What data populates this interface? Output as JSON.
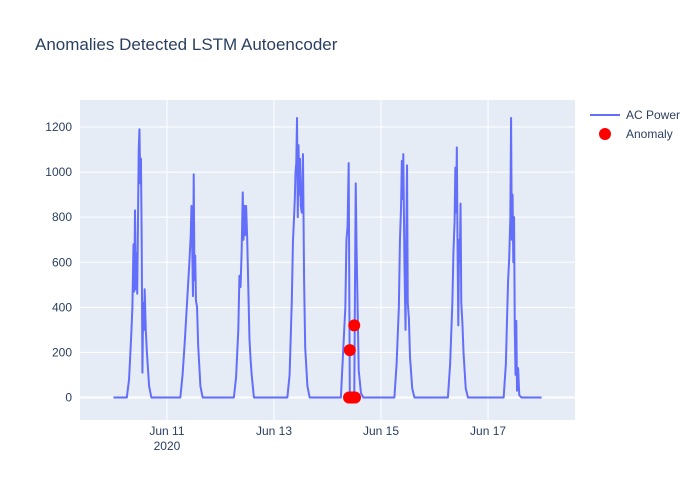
{
  "chart_data": {
    "type": "line",
    "title": "Anomalies Detected LSTM Autoencoder",
    "xlabel": "",
    "ylabel": "",
    "x_axis_type": "date",
    "xlim": [
      "2020-06-09T09:00",
      "2020-06-18T15:00"
    ],
    "ylim": [
      -100,
      1320
    ],
    "x_ticks": [
      {
        "value": "2020-06-11T00:00",
        "label": "Jun 11",
        "sublabel": "2020"
      },
      {
        "value": "2020-06-13T00:00",
        "label": "Jun 13",
        "sublabel": ""
      },
      {
        "value": "2020-06-15T00:00",
        "label": "Jun 15",
        "sublabel": ""
      },
      {
        "value": "2020-06-17T00:00",
        "label": "Jun 17",
        "sublabel": ""
      }
    ],
    "y_ticks": [
      0,
      200,
      400,
      600,
      800,
      1000,
      1200
    ],
    "grid": true,
    "legend_position": "top-right",
    "colors": {
      "ac_power": "#636efa",
      "anomaly": "#ff0000",
      "plot_bg": "#e5ecf6",
      "grid": "#ffffff",
      "text": "#2a3f5f"
    },
    "series": [
      {
        "name": "AC Power",
        "kind": "line",
        "points": [
          [
            "2020-06-10T00:00",
            0
          ],
          [
            "2020-06-10T06:00",
            0
          ],
          [
            "2020-06-10T07:00",
            80
          ],
          [
            "2020-06-10T08:00",
            280
          ],
          [
            "2020-06-10T08:30",
            400
          ],
          [
            "2020-06-10T09:00",
            680
          ],
          [
            "2020-06-10T09:20",
            470
          ],
          [
            "2020-06-10T09:40",
            830
          ],
          [
            "2020-06-10T10:00",
            480
          ],
          [
            "2020-06-10T10:20",
            640
          ],
          [
            "2020-06-10T10:40",
            460
          ],
          [
            "2020-06-10T11:00",
            780
          ],
          [
            "2020-06-10T11:20",
            1100
          ],
          [
            "2020-06-10T11:40",
            1190
          ],
          [
            "2020-06-10T12:00",
            950
          ],
          [
            "2020-06-10T12:20",
            1060
          ],
          [
            "2020-06-10T12:40",
            700
          ],
          [
            "2020-06-10T13:00",
            110
          ],
          [
            "2020-06-10T13:20",
            420
          ],
          [
            "2020-06-10T13:40",
            300
          ],
          [
            "2020-06-10T14:00",
            480
          ],
          [
            "2020-06-10T14:30",
            300
          ],
          [
            "2020-06-10T15:00",
            200
          ],
          [
            "2020-06-10T16:00",
            50
          ],
          [
            "2020-06-10T17:00",
            0
          ],
          [
            "2020-06-11T06:00",
            0
          ],
          [
            "2020-06-11T07:00",
            100
          ],
          [
            "2020-06-11T08:00",
            250
          ],
          [
            "2020-06-11T09:00",
            420
          ],
          [
            "2020-06-11T10:00",
            590
          ],
          [
            "2020-06-11T10:40",
            720
          ],
          [
            "2020-06-11T11:00",
            850
          ],
          [
            "2020-06-11T11:20",
            660
          ],
          [
            "2020-06-11T11:40",
            450
          ],
          [
            "2020-06-11T12:00",
            990
          ],
          [
            "2020-06-11T12:20",
            520
          ],
          [
            "2020-06-11T12:40",
            630
          ],
          [
            "2020-06-11T13:00",
            430
          ],
          [
            "2020-06-11T13:30",
            400
          ],
          [
            "2020-06-11T14:00",
            230
          ],
          [
            "2020-06-11T15:00",
            50
          ],
          [
            "2020-06-11T16:00",
            0
          ],
          [
            "2020-06-12T06:00",
            0
          ],
          [
            "2020-06-12T07:00",
            90
          ],
          [
            "2020-06-12T08:00",
            300
          ],
          [
            "2020-06-12T08:30",
            540
          ],
          [
            "2020-06-12T09:00",
            490
          ],
          [
            "2020-06-12T09:30",
            650
          ],
          [
            "2020-06-12T10:00",
            910
          ],
          [
            "2020-06-12T10:20",
            700
          ],
          [
            "2020-06-12T10:40",
            850
          ],
          [
            "2020-06-12T11:00",
            720
          ],
          [
            "2020-06-12T11:30",
            850
          ],
          [
            "2020-06-12T12:00",
            700
          ],
          [
            "2020-06-12T12:30",
            480
          ],
          [
            "2020-06-12T13:00",
            260
          ],
          [
            "2020-06-12T13:30",
            170
          ],
          [
            "2020-06-12T14:00",
            100
          ],
          [
            "2020-06-12T15:00",
            0
          ],
          [
            "2020-06-13T06:00",
            0
          ],
          [
            "2020-06-13T07:00",
            100
          ],
          [
            "2020-06-13T08:00",
            430
          ],
          [
            "2020-06-13T08:30",
            690
          ],
          [
            "2020-06-13T09:00",
            800
          ],
          [
            "2020-06-13T09:20",
            880
          ],
          [
            "2020-06-13T09:40",
            1000
          ],
          [
            "2020-06-13T10:00",
            1040
          ],
          [
            "2020-06-13T10:20",
            1240
          ],
          [
            "2020-06-13T10:40",
            800
          ],
          [
            "2020-06-13T11:00",
            1120
          ],
          [
            "2020-06-13T11:20",
            900
          ],
          [
            "2020-06-13T11:40",
            1060
          ],
          [
            "2020-06-13T12:00",
            850
          ],
          [
            "2020-06-13T12:30",
            820
          ],
          [
            "2020-06-13T13:00",
            1080
          ],
          [
            "2020-06-13T13:30",
            520
          ],
          [
            "2020-06-13T14:00",
            220
          ],
          [
            "2020-06-13T15:00",
            50
          ],
          [
            "2020-06-13T16:00",
            0
          ],
          [
            "2020-06-14T06:00",
            0
          ],
          [
            "2020-06-14T07:00",
            200
          ],
          [
            "2020-06-14T08:00",
            400
          ],
          [
            "2020-06-14T08:30",
            700
          ],
          [
            "2020-06-14T09:00",
            760
          ],
          [
            "2020-06-14T09:30",
            1040
          ],
          [
            "2020-06-14T10:00",
            0
          ],
          [
            "2020-06-14T11:00",
            0
          ],
          [
            "2020-06-14T12:00",
            0
          ],
          [
            "2020-06-14T12:20",
            500
          ],
          [
            "2020-06-14T12:40",
            950
          ],
          [
            "2020-06-14T13:00",
            680
          ],
          [
            "2020-06-14T13:30",
            400
          ],
          [
            "2020-06-14T14:00",
            120
          ],
          [
            "2020-06-14T15:00",
            20
          ],
          [
            "2020-06-14T16:00",
            0
          ],
          [
            "2020-06-15T06:00",
            0
          ],
          [
            "2020-06-15T07:00",
            150
          ],
          [
            "2020-06-15T08:00",
            400
          ],
          [
            "2020-06-15T08:30",
            700
          ],
          [
            "2020-06-15T09:00",
            850
          ],
          [
            "2020-06-15T09:20",
            1050
          ],
          [
            "2020-06-15T09:40",
            880
          ],
          [
            "2020-06-15T10:00",
            1080
          ],
          [
            "2020-06-15T10:30",
            600
          ],
          [
            "2020-06-15T11:00",
            300
          ],
          [
            "2020-06-15T11:20",
            700
          ],
          [
            "2020-06-15T11:40",
            1030
          ],
          [
            "2020-06-15T12:00",
            420
          ],
          [
            "2020-06-15T12:30",
            350
          ],
          [
            "2020-06-15T13:00",
            180
          ],
          [
            "2020-06-15T14:00",
            40
          ],
          [
            "2020-06-15T15:00",
            0
          ],
          [
            "2020-06-16T06:00",
            0
          ],
          [
            "2020-06-16T07:00",
            150
          ],
          [
            "2020-06-16T08:00",
            420
          ],
          [
            "2020-06-16T08:30",
            650
          ],
          [
            "2020-06-16T09:00",
            780
          ],
          [
            "2020-06-16T09:20",
            1020
          ],
          [
            "2020-06-16T09:40",
            820
          ],
          [
            "2020-06-16T10:00",
            1110
          ],
          [
            "2020-06-16T10:20",
            650
          ],
          [
            "2020-06-16T10:40",
            320
          ],
          [
            "2020-06-16T11:00",
            700
          ],
          [
            "2020-06-16T11:20",
            600
          ],
          [
            "2020-06-16T11:40",
            860
          ],
          [
            "2020-06-16T12:00",
            420
          ],
          [
            "2020-06-16T12:30",
            330
          ],
          [
            "2020-06-16T13:00",
            200
          ],
          [
            "2020-06-16T14:00",
            40
          ],
          [
            "2020-06-16T15:00",
            0
          ],
          [
            "2020-06-17T07:00",
            0
          ],
          [
            "2020-06-17T08:00",
            150
          ],
          [
            "2020-06-17T08:30",
            340
          ],
          [
            "2020-06-17T09:00",
            520
          ],
          [
            "2020-06-17T09:30",
            620
          ],
          [
            "2020-06-17T10:00",
            800
          ],
          [
            "2020-06-17T10:20",
            1240
          ],
          [
            "2020-06-17T10:40",
            700
          ],
          [
            "2020-06-17T11:00",
            900
          ],
          [
            "2020-06-17T11:20",
            600
          ],
          [
            "2020-06-17T11:40",
            800
          ],
          [
            "2020-06-17T12:00",
            300
          ],
          [
            "2020-06-17T12:20",
            100
          ],
          [
            "2020-06-17T12:40",
            340
          ],
          [
            "2020-06-17T13:00",
            30
          ],
          [
            "2020-06-17T13:30",
            130
          ],
          [
            "2020-06-17T14:00",
            10
          ],
          [
            "2020-06-17T15:00",
            0
          ],
          [
            "2020-06-18T00:00",
            0
          ]
        ]
      },
      {
        "name": "Anomaly",
        "kind": "markers",
        "points": [
          [
            "2020-06-14T09:40",
            0
          ],
          [
            "2020-06-14T10:00",
            210
          ],
          [
            "2020-06-14T10:20",
            0
          ],
          [
            "2020-06-14T11:00",
            0
          ],
          [
            "2020-06-14T11:40",
            0
          ],
          [
            "2020-06-14T12:00",
            320
          ],
          [
            "2020-06-14T12:20",
            0
          ]
        ]
      }
    ]
  }
}
